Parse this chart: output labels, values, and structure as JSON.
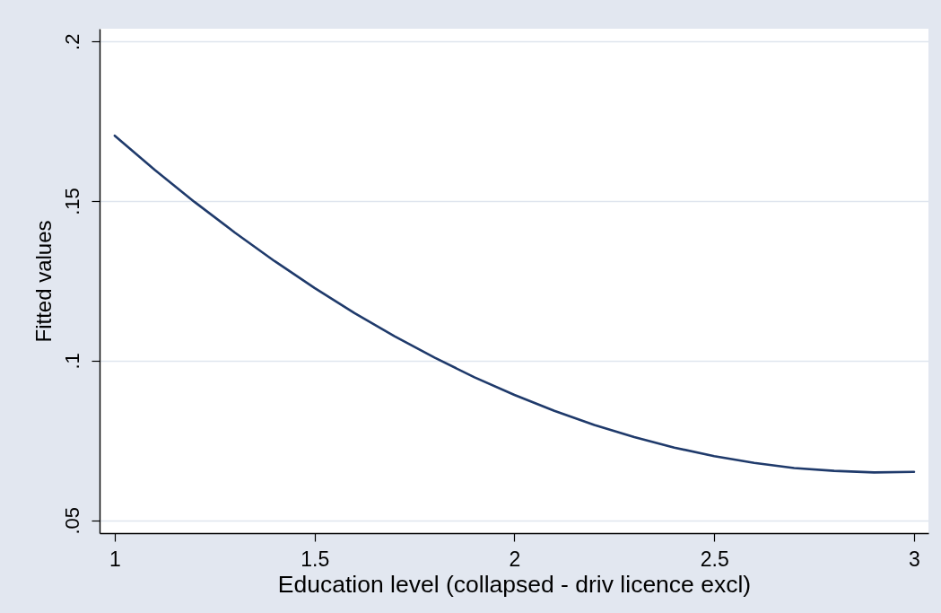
{
  "chart_data": {
    "type": "line",
    "xlabel": "Education level (collapsed - driv licence excl)",
    "ylabel": "Fitted values",
    "x": [
      1,
      1.1,
      1.2,
      1.3,
      1.4,
      1.5,
      1.6,
      1.7,
      1.8,
      1.9,
      2,
      2.1,
      2.2,
      2.3,
      2.4,
      2.5,
      2.6,
      2.7,
      2.8,
      2.9,
      3
    ],
    "series": [
      {
        "color": "#1f3a6b",
        "values": [
          0.1705,
          0.1598,
          0.1497,
          0.1402,
          0.1312,
          0.1228,
          0.1149,
          0.1077,
          0.101,
          0.0948,
          0.0893,
          0.0843,
          0.0799,
          0.0761,
          0.0728,
          0.0701,
          0.068,
          0.0664,
          0.0655,
          0.065,
          0.0652
        ]
      }
    ],
    "xlim": [
      0.962,
      3.036
    ],
    "ylim": [
      0.046,
      0.204
    ],
    "xticks": [
      1,
      1.5,
      2,
      2.5,
      3
    ],
    "yticks": [
      {
        "value": 0.05,
        "label": ".05"
      },
      {
        "value": 0.1,
        "label": ".1"
      },
      {
        "value": 0.15,
        "label": ".15"
      },
      {
        "value": 0.2,
        "label": ".2"
      }
    ],
    "grid": "y",
    "line_style": "solid"
  }
}
